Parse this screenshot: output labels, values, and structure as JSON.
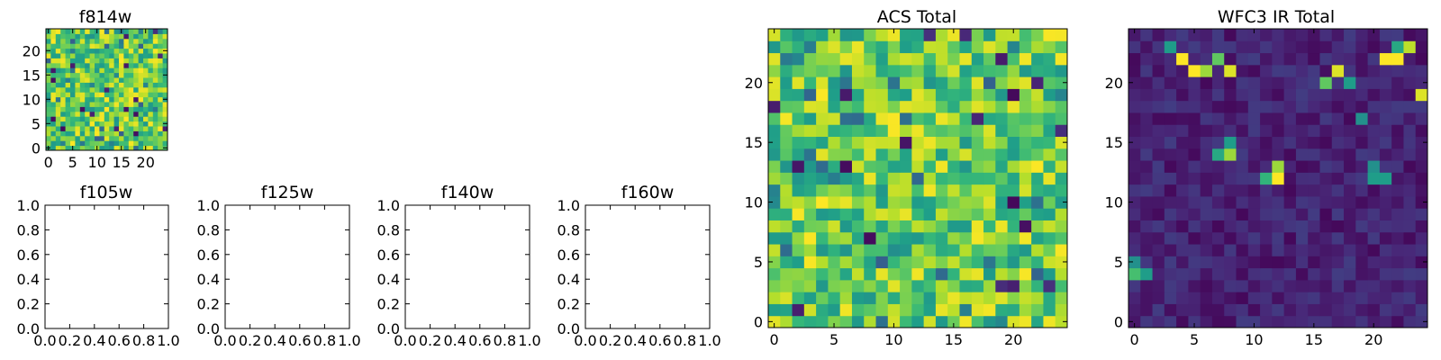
{
  "chart_data": [
    {
      "type": "heatmap",
      "title": "f814w",
      "colormap": "viridis",
      "grid_size": 25,
      "xticks": [
        "0",
        "5",
        "10",
        "15",
        "20"
      ],
      "yticks": [
        "0",
        "5",
        "10",
        "15",
        "20"
      ],
      "xlim": [
        -0.5,
        24.5
      ],
      "ylim": [
        -0.5,
        24.5
      ],
      "pattern": "noisy-high",
      "seed": 11
    },
    {
      "type": "empty",
      "title": "f105w",
      "xticks": [
        "0.0",
        "0.2",
        "0.4",
        "0.6",
        "0.8",
        "1.0"
      ],
      "yticks": [
        "0.0",
        "0.2",
        "0.4",
        "0.6",
        "0.8",
        "1.0"
      ],
      "xlim": [
        0,
        1
      ],
      "ylim": [
        0,
        1
      ]
    },
    {
      "type": "empty",
      "title": "f125w",
      "xticks": [
        "0.0",
        "0.2",
        "0.4",
        "0.6",
        "0.8",
        "1.0"
      ],
      "yticks": [
        "0.0",
        "0.2",
        "0.4",
        "0.6",
        "0.8",
        "1.0"
      ],
      "xlim": [
        0,
        1
      ],
      "ylim": [
        0,
        1
      ]
    },
    {
      "type": "empty",
      "title": "f140w",
      "xticks": [
        "0.0",
        "0.2",
        "0.4",
        "0.6",
        "0.8",
        "1.0"
      ],
      "yticks": [
        "0.0",
        "0.2",
        "0.4",
        "0.6",
        "0.8",
        "1.0"
      ],
      "xlim": [
        0,
        1
      ],
      "ylim": [
        0,
        1
      ]
    },
    {
      "type": "empty",
      "title": "f160w",
      "xticks": [
        "0.0",
        "0.2",
        "0.4",
        "0.6",
        "0.8",
        "1.0"
      ],
      "yticks": [
        "0.0",
        "0.2",
        "0.4",
        "0.6",
        "0.8",
        "1.0"
      ],
      "xlim": [
        0,
        1
      ],
      "ylim": [
        0,
        1
      ]
    },
    {
      "type": "heatmap",
      "title": "ACS Total",
      "colormap": "viridis",
      "grid_size": 25,
      "xticks": [
        "0",
        "5",
        "10",
        "15",
        "20"
      ],
      "yticks": [
        "0",
        "5",
        "10",
        "15",
        "20"
      ],
      "xlim": [
        -0.5,
        24.5
      ],
      "ylim": [
        -0.5,
        24.5
      ],
      "pattern": "noisy-high",
      "seed": 29
    },
    {
      "type": "heatmap",
      "title": "WFC3 IR Total",
      "colormap": "viridis",
      "grid_size": 25,
      "xticks": [
        "0",
        "5",
        "10",
        "15",
        "20"
      ],
      "yticks": [
        "0",
        "5",
        "10",
        "15",
        "20"
      ],
      "xlim": [
        -0.5,
        24.5
      ],
      "ylim": [
        -0.5,
        24.5
      ],
      "pattern": "low-with-hotspots",
      "seed": 7,
      "hotspots": [
        {
          "x": 4,
          "y": 22,
          "v": 1.0
        },
        {
          "x": 5,
          "y": 21,
          "v": 1.0
        },
        {
          "x": 6,
          "y": 21,
          "v": 0.85
        },
        {
          "x": 7,
          "y": 22,
          "v": 0.75
        },
        {
          "x": 8,
          "y": 21,
          "v": 0.95
        },
        {
          "x": 3,
          "y": 23,
          "v": 0.55
        },
        {
          "x": 17,
          "y": 21,
          "v": 0.95
        },
        {
          "x": 16,
          "y": 20,
          "v": 0.75
        },
        {
          "x": 18,
          "y": 20,
          "v": 0.55
        },
        {
          "x": 21,
          "y": 22,
          "v": 1.0
        },
        {
          "x": 22,
          "y": 22,
          "v": 1.0
        },
        {
          "x": 23,
          "y": 23,
          "v": 0.9
        },
        {
          "x": 22,
          "y": 23,
          "v": 0.6
        },
        {
          "x": 24,
          "y": 19,
          "v": 0.95
        },
        {
          "x": 19,
          "y": 17,
          "v": 0.5
        },
        {
          "x": 7,
          "y": 14,
          "v": 0.6
        },
        {
          "x": 8,
          "y": 14,
          "v": 0.85
        },
        {
          "x": 8,
          "y": 15,
          "v": 0.55
        },
        {
          "x": 11,
          "y": 12,
          "v": 0.65
        },
        {
          "x": 12,
          "y": 12,
          "v": 1.0
        },
        {
          "x": 12,
          "y": 13,
          "v": 0.85
        },
        {
          "x": 20,
          "y": 12,
          "v": 0.55
        },
        {
          "x": 21,
          "y": 12,
          "v": 0.55
        },
        {
          "x": 20,
          "y": 13,
          "v": 0.5
        },
        {
          "x": 0,
          "y": 4,
          "v": 0.7
        },
        {
          "x": 1,
          "y": 4,
          "v": 0.55
        },
        {
          "x": 0,
          "y": 5,
          "v": 0.5
        }
      ]
    }
  ]
}
